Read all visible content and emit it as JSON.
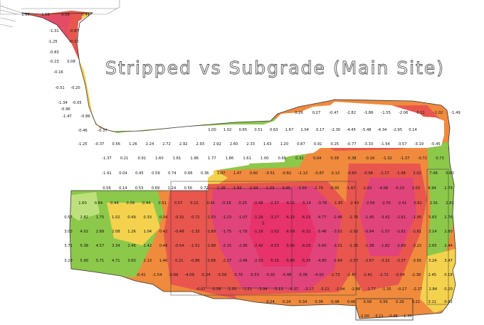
{
  "map": {
    "title": "Stripped vs Subgrade (Main Site)",
    "lot_label": "5",
    "colors": {
      "fill_deep": "#e0447a",
      "fill_red": "#e8564e",
      "fill_orange": "#f08a3c",
      "fill_yellow": "#f4d24e",
      "cut_green": "#8cc84a",
      "cut_light": "#bde07c",
      "outline": "#333333"
    },
    "values": [
      [
        "1.96",
        "1.56",
        "0.56",
        "0.44"
      ],
      [
        "-1.31",
        "-0.87"
      ],
      [
        "-1.25",
        "-0.10"
      ],
      [
        "-0.83"
      ],
      [
        "-0.23",
        "0.08"
      ],
      [
        "-0.16"
      ],
      [
        "-0.51",
        "-0.20"
      ],
      [
        "-1.34",
        "-0.05"
      ],
      [
        "-0.96"
      ],
      [
        "-1.47",
        "-0.86"
      ],
      [
        "-0.46",
        "-0.37"
      ],
      [
        "0.26",
        "0.27",
        "-0.47",
        "-2.82",
        "-1.86",
        "-1.55",
        "-2.06",
        "0.11",
        "-1.02",
        "-1.49"
      ],
      [
        "1.00",
        "1.02",
        "0.65",
        "0.51",
        "0.63",
        "1.67",
        "1.04",
        "0.17",
        "-2.30",
        "-4.45",
        "-5.48",
        "-4.34",
        "-2.95",
        "0.14"
      ],
      [
        "-1.25",
        "-0.37",
        "0.56",
        "1.26",
        "2.24",
        "2.72",
        "2.92",
        "2.93",
        "2.92",
        "2.60",
        "2.33",
        "1.63",
        "1.20",
        "0.87",
        "0.91",
        "0.25",
        "-0.77",
        "-3.33",
        "-1.54",
        "-3.57",
        "-3.19",
        "-0.45"
      ],
      [
        "-1.37",
        "0.21",
        "0.91",
        "1.60",
        "1.81",
        "1.96",
        "1.77",
        "1.86",
        "1.61",
        "1.00",
        "0.65",
        "0.32",
        "0.04",
        "0.39",
        "0.38",
        "-0.16",
        "-1.32",
        "-1.37",
        "-0.72",
        "0.73"
      ],
      [
        "-1.91",
        "0.04",
        "0.45",
        "0.59",
        "0.74",
        "0.66",
        "0.36",
        "1.07",
        "1.47",
        "0.60",
        "-0.51",
        "-0.82",
        "-1.13",
        "-0.87",
        "0.13",
        "-0.60",
        "-0.98",
        "-1.17",
        "-1.48",
        "2.02",
        "7.48",
        "0.63"
      ],
      [
        "0.56",
        "0.14",
        "0.53",
        "0.69",
        "1.24",
        "0.56",
        "0.72",
        "-1.26",
        "-1.93",
        "-2.34",
        "-1.33",
        "-3.45",
        "-3.66",
        "-2.79",
        "-0.95",
        "-1.67",
        "-1.82",
        "-4.06",
        "-5.23",
        "3.03",
        "6.94",
        "2.79"
      ],
      [
        "1.60",
        "0.84",
        "0.44",
        "0.09",
        "0.44",
        "0.51",
        "0.57",
        "0.22",
        "-0.41",
        "-0.18",
        "-0.25",
        "-0.48",
        "-2.37",
        "-6.01",
        "-5.14",
        "-3.78",
        "-1.85",
        "-2.43",
        "-2.56",
        "-2.55",
        "-2.41",
        "0.81",
        "2.91",
        "2.81"
      ],
      [
        "0.57",
        "2.82",
        "1.75",
        "1.02",
        "0.49",
        "0.33",
        "0.34",
        "-0.32",
        "-0.72",
        "-1.03",
        "-1.23",
        "-1.07",
        "-1.26",
        "-3.27",
        "-6.15",
        "-6.15",
        "-4.77",
        "-2.46",
        "-2.76",
        "-1.45",
        "-3.41",
        "-1.61",
        "-1.95",
        "5.63",
        "2.76"
      ],
      [
        "3.03",
        "4.02",
        "2.89",
        "2.08",
        "1.26",
        "1.04",
        "0.42",
        "-0.48",
        "-1.35",
        "-1.89",
        "-1.75",
        "-1.78",
        "-1.16",
        "-1.02",
        "-6.09",
        "-6.32",
        "-5.46",
        "-3.01",
        "-2.02",
        "-0.84",
        "-1.57",
        "-2.81",
        "-2.81",
        "3.14",
        "2.80"
      ],
      [
        "3.71",
        "5.38",
        "4.57",
        "3.34",
        "2.46",
        "1.42",
        "0.48",
        "-0.54",
        "-1.51",
        "-1.98",
        "-2.15",
        "-2.36",
        "-2.42",
        "-4.53",
        "-5.80",
        "-6.03",
        "-5.60",
        "-3.31",
        "-1.30",
        "-1.38",
        "-1.82",
        "-2.89",
        "-3.22",
        "2.65",
        "2.44"
      ],
      [
        "3.29",
        "5.90",
        "5.71",
        "4.71",
        "3.60",
        "2.13",
        "1.46",
        "0.21",
        "-0.86",
        "-1.68",
        "-2.27",
        "-2.48",
        "-2.53",
        "-5.15",
        "-5.80",
        "-5.35",
        "-4.80",
        "-2.84",
        "-2.57",
        "-2.67",
        "-3.31",
        "-3.37",
        "-3.65",
        "3.24",
        "3.47"
      ],
      [
        "-0.41",
        "-1.54",
        "-3.69",
        "-4.09",
        "-5.24",
        "-5.58",
        "-5.76",
        "-5.53",
        "-5.92",
        "-5.48",
        "-5.06",
        "-4.00",
        "-2.73",
        "-2.47",
        "-2.41",
        "-2.72",
        "-0.54",
        "-2.38",
        "2.45",
        "0.18"
      ],
      [
        "-0.07",
        "-0.58",
        "-1.03",
        "-1.51",
        "-3.94",
        "-3.13",
        "-4.37",
        "-3.17",
        "-3.21",
        "-2.94",
        "-2.88",
        "-1.77",
        "-1.35",
        "-0.17",
        "-2.27",
        "2.84",
        "0.20"
      ],
      [
        "0.24",
        "0.24",
        "0.34",
        "0.36",
        "0.48",
        "0.46",
        "0.58",
        "0.56",
        "0.29",
        "0.21",
        "3.11",
        "0.92"
      ],
      [
        "-2.00",
        "-3.11",
        "-3.48",
        "-1.30"
      ]
    ]
  }
}
